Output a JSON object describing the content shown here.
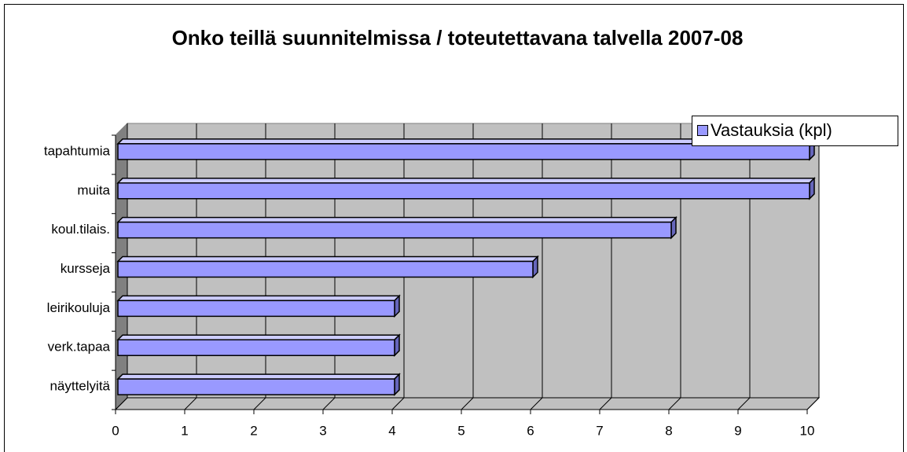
{
  "chart_data": {
    "type": "bar",
    "orientation": "horizontal",
    "title": "Onko teillä suunnitelmissa / toteutettavana talvella 2007-08",
    "categories": [
      "tapahtumia",
      "muita",
      "koul.tilais.",
      "kursseja",
      "leirikouluja",
      "verk.tapaa",
      "näyttelyitä"
    ],
    "series": [
      {
        "name": "Vastauksia (kpl)",
        "color": "#9999ff",
        "values": [
          10,
          10,
          8,
          6,
          4,
          4,
          4
        ]
      }
    ],
    "xlim": [
      0,
      10
    ],
    "xticks": [
      0,
      1,
      2,
      3,
      4,
      5,
      6,
      7,
      8,
      9,
      10
    ],
    "grid": true,
    "legend": "top-right"
  }
}
